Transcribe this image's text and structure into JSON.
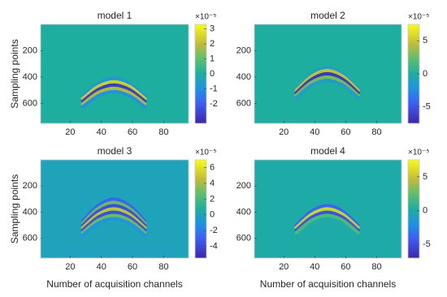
{
  "chart_data": [
    {
      "type": "heatmap",
      "title": "model 1",
      "ylabel": "Sampling points",
      "colormap": "parula",
      "xlim": [
        1,
        96
      ],
      "ylim": [
        1,
        750
      ],
      "xticks": [
        20,
        40,
        60,
        80
      ],
      "yticks": [
        200,
        400,
        600
      ],
      "clim": [
        -3.3,
        3.3
      ],
      "cticks": [
        -2,
        -1,
        0,
        1,
        2,
        3
      ],
      "colorbar_exponent": "×10⁻⁵",
      "events": [
        {
          "x": [
            28,
            38,
            48,
            58,
            68
          ],
          "y": [
            545,
            448,
            410,
            448,
            545
          ],
          "value": -0.8
        },
        {
          "x": [
            28,
            38,
            48,
            58,
            68
          ],
          "y": [
            564,
            471,
            435,
            471,
            564
          ],
          "value": 2.5
        },
        {
          "x": [
            28,
            38,
            48,
            58,
            68
          ],
          "y": [
            583,
            494,
            460,
            494,
            583
          ],
          "value": -3
        },
        {
          "x": [
            28,
            38,
            48,
            58,
            68
          ],
          "y": [
            603,
            517,
            485,
            517,
            603
          ],
          "value": 2
        },
        {
          "x": [
            28,
            38,
            48,
            58,
            68
          ],
          "y": [
            624,
            541,
            510,
            541,
            624
          ],
          "value": -1
        }
      ]
    },
    {
      "type": "heatmap",
      "title": "model 2",
      "colormap": "parula",
      "xlim": [
        1,
        96
      ],
      "ylim": [
        1,
        750
      ],
      "xticks": [
        20,
        40,
        60,
        80
      ],
      "yticks": [
        200,
        400,
        600
      ],
      "clim": [
        -7.5,
        7.5
      ],
      "cticks": [
        -5,
        0,
        5
      ],
      "colorbar_exponent": "×10⁻⁵",
      "events": [
        {
          "x": [
            28,
            38,
            48,
            58,
            68
          ],
          "y": [
            488,
            376,
            330,
            376,
            488
          ],
          "value": -1.5
        },
        {
          "x": [
            28,
            38,
            48,
            58,
            68
          ],
          "y": [
            501,
            393,
            350,
            393,
            501
          ],
          "value": 5
        },
        {
          "x": [
            28,
            38,
            48,
            58,
            68
          ],
          "y": [
            519,
            416,
            375,
            416,
            519
          ],
          "value": -7
        },
        {
          "x": [
            28,
            38,
            48,
            58,
            68
          ],
          "y": [
            537,
            438,
            400,
            438,
            537
          ],
          "value": 3
        },
        {
          "x": [
            28,
            38,
            48,
            58,
            68
          ],
          "y": [
            556,
            461,
            425,
            461,
            556
          ],
          "value": -1.5
        }
      ]
    },
    {
      "type": "heatmap",
      "title": "model 3",
      "ylabel": "Sampling points",
      "xlabel": "Number of acquisition channels",
      "colormap": "parula",
      "xlim": [
        1,
        96
      ],
      "ylim": [
        1,
        750
      ],
      "xticks": [
        20,
        40,
        60,
        80
      ],
      "yticks": [
        200,
        400,
        600
      ],
      "clim": [
        -5.5,
        7
      ],
      "cticks": [
        -4,
        -2,
        0,
        2,
        4,
        6
      ],
      "colorbar_exponent": "×10⁻⁵",
      "events": [
        {
          "x": [
            28,
            38,
            48,
            58,
            68
          ],
          "y": [
            468,
            350,
            300,
            350,
            468
          ],
          "value": -3
        },
        {
          "x": [
            28,
            38,
            48,
            58,
            68
          ],
          "y": [
            484,
            371,
            325,
            371,
            484
          ],
          "value": 3
        },
        {
          "x": [
            28,
            38,
            48,
            58,
            68
          ],
          "y": [
            501,
            393,
            350,
            393,
            501
          ],
          "value": -4
        },
        {
          "x": [
            28,
            38,
            48,
            58,
            68
          ],
          "y": [
            519,
            416,
            375,
            416,
            519
          ],
          "value": 5
        },
        {
          "x": [
            28,
            38,
            48,
            58,
            68
          ],
          "y": [
            537,
            438,
            400,
            438,
            537
          ],
          "value": -4
        },
        {
          "x": [
            28,
            38,
            48,
            58,
            68
          ],
          "y": [
            556,
            461,
            425,
            461,
            556
          ],
          "value": 3
        },
        {
          "x": [
            28,
            38,
            48,
            58,
            68
          ],
          "y": [
            576,
            485,
            450,
            485,
            576
          ],
          "value": -1
        }
      ]
    },
    {
      "type": "heatmap",
      "title": "model 4",
      "xlabel": "Number of acquisition channels",
      "colormap": "parula",
      "xlim": [
        1,
        96
      ],
      "ylim": [
        1,
        750
      ],
      "xticks": [
        20,
        40,
        60,
        80
      ],
      "yticks": [
        200,
        400,
        600
      ],
      "clim": [
        -7,
        7.5
      ],
      "cticks": [
        -5,
        0,
        5
      ],
      "colorbar_exponent": "×10⁻⁵",
      "events": [
        {
          "x": [
            28,
            38,
            48,
            58,
            68
          ],
          "y": [
            501,
            393,
            350,
            393,
            501
          ],
          "value": -4
        },
        {
          "x": [
            28,
            38,
            48,
            58,
            68
          ],
          "y": [
            519,
            416,
            375,
            416,
            519
          ],
          "value": 6
        },
        {
          "x": [
            28,
            38,
            48,
            58,
            68
          ],
          "y": [
            537,
            438,
            400,
            438,
            537
          ],
          "value": -5
        },
        {
          "x": [
            28,
            38,
            48,
            58,
            68
          ],
          "y": [
            556,
            461,
            425,
            461,
            556
          ],
          "value": 2
        }
      ]
    }
  ]
}
